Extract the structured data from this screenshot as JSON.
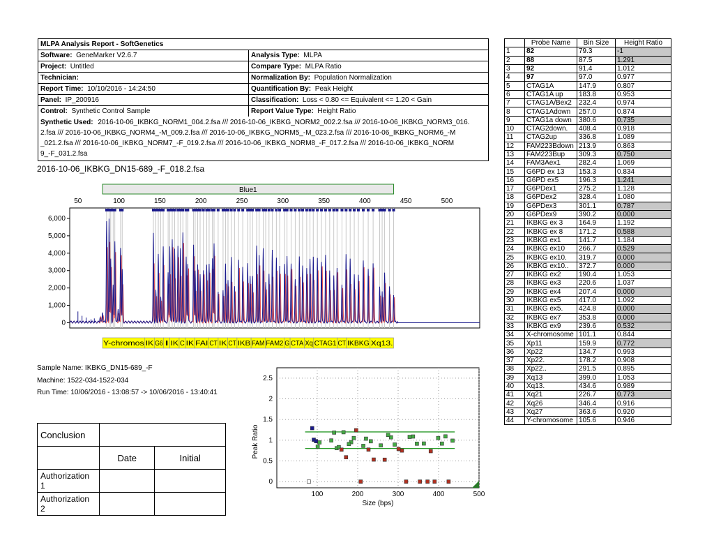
{
  "report": {
    "title": "MLPA Analysis Report  - SoftGenetics",
    "rows": [
      {
        "l_label": "Software:",
        "l_value": "GeneMarker V2.6.7",
        "r_label": "Analysis Type:",
        "r_value": "MLPA"
      },
      {
        "l_label": "Project:",
        "l_value": "Untitled",
        "r_label": "Compare Type:",
        "r_value": "MLPA Ratio"
      },
      {
        "l_label": "Technician:",
        "l_value": "",
        "r_label": "Normalization By:",
        "r_value": "Population Normalization"
      },
      {
        "l_label": "Report Time:",
        "l_value": "10/10/2016 - 14:24:50",
        "r_label": "Quantification By:",
        "r_value": "Peak Height"
      },
      {
        "l_label": "Panel:",
        "l_value": "IP_200916",
        "r_label": "Classification:",
        "r_value": "Loss < 0.80 <= Equivalent <= 1.20 < Gain"
      },
      {
        "l_label": "Control:",
        "l_value": "Synthetic Control Sample",
        "r_label": "Report Value Type:",
        "r_value": "Height Ratio"
      }
    ],
    "synthetic_label": "Synthetic Used:",
    "synthetic_lines": [
      "2016-10-06_IKBKG_NORM1_004.2.fsa /// 2016-10-06_IKBKG_NORM2_002.2.fsa /// 2016-10-06_IKBKG_NORM3_016.",
      "2.fsa /// 2016-10-06_IKBKG_NORM4_-M_009.2.fsa /// 2016-10-06_IKBKG_NORM5_-M_023.2.fsa /// 2016-10-06_IKBKG_NORM6_-M",
      "_021.2.fsa /// 2016-10-06_IKBKG_NORM7_-F_019.2.fsa /// 2016-10-06_IKBKG_NORM8_-F_017.2.fsa /// 2016-10-06_IKBKG_NORM",
      "9_-F_031.2.fsa"
    ]
  },
  "file_name": "2016-10-06_IKBKG_DN15-689_-F_018.2.fsa",
  "sample": {
    "name": "Sample Name: IKBKG_DN15-689_-F",
    "machine": "Machine: 1522-034-1522-034",
    "run_time": "Run Time: 10/06/2016 - 13:08:57 -> 10/06/2016 - 13:40:41"
  },
  "probe_table": {
    "headers": [
      "",
      "Probe Name",
      "Bin Size",
      "Height Ratio"
    ],
    "rows": [
      {
        "n": "1",
        "probe": "82",
        "bin": "79.3",
        "ratio": "-1",
        "hl": true,
        "bold": true
      },
      {
        "n": "2",
        "probe": "88",
        "bin": "87.5",
        "ratio": "1.291",
        "hl": true,
        "bold": true
      },
      {
        "n": "3",
        "probe": "92",
        "bin": "91.4",
        "ratio": "1.012",
        "hl": false,
        "bold": true
      },
      {
        "n": "4",
        "probe": "97",
        "bin": "97.0",
        "ratio": "0.977",
        "hl": false,
        "bold": true
      },
      {
        "n": "5",
        "probe": "CTAG1A",
        "bin": "147.9",
        "ratio": "0.807",
        "hl": false
      },
      {
        "n": "6",
        "probe": "CTAG1A up",
        "bin": "183.8",
        "ratio": "0.953",
        "hl": false
      },
      {
        "n": "7",
        "probe": "CTAG1A/Bex2",
        "bin": "232.4",
        "ratio": "0.974",
        "hl": false
      },
      {
        "n": "8",
        "probe": "CTAG1Adown",
        "bin": "257.0",
        "ratio": "0.874",
        "hl": false
      },
      {
        "n": "9",
        "probe": "CTAG1a down",
        "bin": "380.6",
        "ratio": "0.735",
        "hl": true
      },
      {
        "n": "10",
        "probe": "CTAG2down.",
        "bin": "408.4",
        "ratio": "0.918",
        "hl": false
      },
      {
        "n": "11",
        "probe": "CTAG2up",
        "bin": "336.8",
        "ratio": "1.089",
        "hl": false
      },
      {
        "n": "12",
        "probe": "FAM223Bdown",
        "bin": "213.9",
        "ratio": "0.863",
        "hl": false
      },
      {
        "n": "13",
        "probe": "FAM223Bup",
        "bin": "309.3",
        "ratio": "0.750",
        "hl": true
      },
      {
        "n": "14",
        "probe": "FAM3Aex1",
        "bin": "282.4",
        "ratio": "1.069",
        "hl": false
      },
      {
        "n": "15",
        "probe": "G6PD ex 13",
        "bin": "153.3",
        "ratio": "0.834",
        "hl": false
      },
      {
        "n": "16",
        "probe": "G6PD ex5",
        "bin": "196.3",
        "ratio": "1.241",
        "hl": true
      },
      {
        "n": "17",
        "probe": "G6PDex1",
        "bin": "275.2",
        "ratio": "1.128",
        "hl": false
      },
      {
        "n": "18",
        "probe": "G6PDex2",
        "bin": "328.4",
        "ratio": "1.080",
        "hl": false
      },
      {
        "n": "19",
        "probe": "G6PDex3",
        "bin": "301.1",
        "ratio": "0.787",
        "hl": true
      },
      {
        "n": "20",
        "probe": "G6PDex9",
        "bin": "390.2",
        "ratio": "0.000",
        "hl": true
      },
      {
        "n": "21",
        "probe": "IKBKG ex 3",
        "bin": "164.9",
        "ratio": "1.192",
        "hl": false
      },
      {
        "n": "22",
        "probe": "IKBKG ex 8",
        "bin": "171.2",
        "ratio": "0.588",
        "hl": true
      },
      {
        "n": "23",
        "probe": "IKBKG ex1",
        "bin": "141.7",
        "ratio": "1.184",
        "hl": false
      },
      {
        "n": "24",
        "probe": "IKBKG ex10",
        "bin": "266.7",
        "ratio": "0.529",
        "hl": true
      },
      {
        "n": "25",
        "probe": "IKBKG ex10.",
        "bin": "319.7",
        "ratio": "0.000",
        "hl": true
      },
      {
        "n": "26",
        "probe": "IKBKG ex10..",
        "bin": "372.7",
        "ratio": "0.000",
        "hl": true
      },
      {
        "n": "27",
        "probe": "IKBKG ex2",
        "bin": "190.4",
        "ratio": "1.053",
        "hl": false
      },
      {
        "n": "28",
        "probe": "IKBKG ex3",
        "bin": "220.6",
        "ratio": "1.037",
        "hl": false
      },
      {
        "n": "29",
        "probe": "IKBKG ex4",
        "bin": "207.4",
        "ratio": "0.000",
        "hl": true
      },
      {
        "n": "30",
        "probe": "IKBKG ex5",
        "bin": "417.0",
        "ratio": "1.092",
        "hl": false
      },
      {
        "n": "31",
        "probe": "IKBKG ex5.",
        "bin": "424.8",
        "ratio": "0.000",
        "hl": true
      },
      {
        "n": "32",
        "probe": "IKBKG ex7",
        "bin": "353.8",
        "ratio": "0.000",
        "hl": true
      },
      {
        "n": "33",
        "probe": "IKBKG ex9",
        "bin": "239.6",
        "ratio": "0.532",
        "hl": true
      },
      {
        "n": "34",
        "probe": "X-chromosome",
        "bin": "101.1",
        "ratio": "0.844",
        "hl": false
      },
      {
        "n": "35",
        "probe": "Xp11",
        "bin": "159.9",
        "ratio": "0.772",
        "hl": true
      },
      {
        "n": "36",
        "probe": "Xp22",
        "bin": "134.7",
        "ratio": "0.993",
        "hl": false
      },
      {
        "n": "37",
        "probe": "Xp22.",
        "bin": "178.2",
        "ratio": "0.908",
        "hl": false
      },
      {
        "n": "38",
        "probe": "Xp22..",
        "bin": "291.5",
        "ratio": "0.895",
        "hl": false
      },
      {
        "n": "39",
        "probe": "Xq13",
        "bin": "399.0",
        "ratio": "1.053",
        "hl": false
      },
      {
        "n": "40",
        "probe": "Xq13.",
        "bin": "434.6",
        "ratio": "0.989",
        "hl": false
      },
      {
        "n": "41",
        "probe": "Xq21",
        "bin": "226.7",
        "ratio": "0.773",
        "hl": true
      },
      {
        "n": "42",
        "probe": "Xq26",
        "bin": "346.4",
        "ratio": "0.916",
        "hl": false
      },
      {
        "n": "43",
        "probe": "Xq27",
        "bin": "363.6",
        "ratio": "0.920",
        "hl": false
      },
      {
        "n": "44",
        "probe": "Y-chromosome",
        "bin": "105.6",
        "ratio": "0.946",
        "hl": false
      }
    ]
  },
  "conclusion": {
    "label": "Conclusion",
    "date": "Date",
    "initial": "Initial",
    "auth1": "Authorization 1",
    "auth2": "Authorization 2"
  },
  "colors": {
    "blue_trace": "#1a1a8c",
    "red_trace": "#e05050",
    "yellow_label": "#ffff00",
    "green_line": "#2a9a2a",
    "gain_green": "#44aa44",
    "loss_red": "#b03020",
    "grey_highlight": "#c8c8c8"
  },
  "chart_data": [
    {
      "type": "line",
      "title": "Blue1",
      "x_ticks": [
        "50",
        "100",
        "150",
        "200",
        "250",
        "300",
        "350",
        "400",
        "450",
        "500"
      ],
      "y_ticks": [
        "0",
        "1,000",
        "2,000",
        "3,000",
        "4,000",
        "5,000",
        "6,000"
      ],
      "xlim": [
        40,
        540
      ],
      "ylim": [
        -300,
        6600
      ],
      "series": [
        {
          "values_desc": "electropherogram",
          "peaks": [
            [
              77,
              300
            ],
            [
              80,
              600
            ],
            [
              85,
              5800
            ],
            [
              88,
              6000
            ],
            [
              90,
              3600
            ],
            [
              93,
              2100
            ],
            [
              95,
              4700
            ],
            [
              99,
              800
            ],
            [
              102,
              4300
            ],
            [
              104,
              3000
            ],
            [
              142,
              5100
            ],
            [
              145,
              1800
            ],
            [
              148,
              3900
            ],
            [
              151,
              1500
            ],
            [
              154,
              4400
            ],
            [
              160,
              2800
            ],
            [
              162,
              4400
            ],
            [
              165,
              4800
            ],
            [
              168,
              4200
            ],
            [
              172,
              4400
            ],
            [
              175,
              4200
            ],
            [
              178,
              5100
            ],
            [
              182,
              3700
            ],
            [
              184,
              3400
            ],
            [
              191,
              4500
            ],
            [
              193,
              2900
            ],
            [
              196,
              3300
            ],
            [
              199,
              2800
            ],
            [
              203,
              3000
            ],
            [
              207,
              3300
            ],
            [
              210,
              3400
            ],
            [
              214,
              3700
            ],
            [
              216,
              4500
            ],
            [
              221,
              1800
            ],
            [
              227,
              1800
            ],
            [
              230,
              3300
            ],
            [
              233,
              2400
            ],
            [
              237,
              3700
            ],
            [
              241,
              2000
            ],
            [
              246,
              3600
            ],
            [
              251,
              3200
            ],
            [
              257,
              3400
            ],
            [
              260,
              2600
            ],
            [
              263,
              2600
            ],
            [
              268,
              4400
            ],
            [
              271,
              3800
            ],
            [
              276,
              4300
            ],
            [
              279,
              2300
            ],
            [
              283,
              2800
            ],
            [
              287,
              4200
            ],
            [
              292,
              3700
            ],
            [
              296,
              3200
            ],
            [
              302,
              3400
            ],
            [
              305,
              3800
            ],
            [
              310,
              3400
            ],
            [
              315,
              2400
            ],
            [
              320,
              3800
            ],
            [
              324,
              3300
            ],
            [
              329,
              3100
            ],
            [
              333,
              3600
            ],
            [
              337,
              3700
            ],
            [
              342,
              3700
            ],
            [
              347,
              3500
            ],
            [
              352,
              3800
            ],
            [
              357,
              3000
            ],
            [
              362,
              2700
            ],
            [
              366,
              3100
            ],
            [
              372,
              2200
            ],
            [
              377,
              3900
            ],
            [
              382,
              3600
            ],
            [
              387,
              2800
            ],
            [
              392,
              2700
            ],
            [
              398,
              3600
            ],
            [
              404,
              3000
            ],
            [
              410,
              3400
            ],
            [
              418,
              2000
            ],
            [
              421,
              1800
            ],
            [
              424,
              2900
            ],
            [
              430,
              2000
            ],
            [
              435,
              1600
            ]
          ]
        }
      ],
      "yellow_labels": [
        "Y-chromos",
        "IK",
        "G6",
        "I",
        "IK",
        "C",
        "IK",
        "FAI",
        "CT",
        "IK",
        "CT",
        "IKB",
        "FAM",
        "FAM2",
        "G",
        "CTA",
        "Xq",
        "CTAG1",
        "CT",
        "IKBKG",
        "Xq13."
      ]
    },
    {
      "type": "scatter",
      "xlabel": "Size (bps)",
      "ylabel": "Peak Ratio",
      "x_ticks": [
        "100",
        "200",
        "300",
        "400",
        "500"
      ],
      "y_ticks": [
        "0",
        "0.5",
        "1",
        "1.5",
        "2",
        "2.5"
      ],
      "xlim": [
        0,
        500
      ],
      "ylim": [
        -0.15,
        2.75
      ],
      "threshold_lines": [
        0.8,
        1.2
      ],
      "points": [
        {
          "x": 79.3,
          "y": 0.0,
          "kind": "white"
        },
        {
          "x": 87.5,
          "y": 1.291,
          "kind": "blue"
        },
        {
          "x": 91.4,
          "y": 1.012,
          "kind": "blue"
        },
        {
          "x": 97.0,
          "y": 0.977,
          "kind": "blue"
        },
        {
          "x": 147.9,
          "y": 0.807,
          "kind": "green"
        },
        {
          "x": 183.8,
          "y": 0.953,
          "kind": "green"
        },
        {
          "x": 232.4,
          "y": 0.974,
          "kind": "green"
        },
        {
          "x": 257.0,
          "y": 0.874,
          "kind": "green"
        },
        {
          "x": 380.6,
          "y": 0.735,
          "kind": "red"
        },
        {
          "x": 408.4,
          "y": 0.918,
          "kind": "green"
        },
        {
          "x": 336.8,
          "y": 1.089,
          "kind": "green"
        },
        {
          "x": 213.9,
          "y": 0.863,
          "kind": "green"
        },
        {
          "x": 309.3,
          "y": 0.75,
          "kind": "red"
        },
        {
          "x": 282.4,
          "y": 1.069,
          "kind": "green"
        },
        {
          "x": 153.3,
          "y": 0.834,
          "kind": "green"
        },
        {
          "x": 196.3,
          "y": 1.241,
          "kind": "red"
        },
        {
          "x": 275.2,
          "y": 1.128,
          "kind": "green"
        },
        {
          "x": 328.4,
          "y": 1.08,
          "kind": "green"
        },
        {
          "x": 301.1,
          "y": 0.787,
          "kind": "red"
        },
        {
          "x": 390.2,
          "y": 0.0,
          "kind": "red"
        },
        {
          "x": 164.9,
          "y": 1.192,
          "kind": "green"
        },
        {
          "x": 171.2,
          "y": 0.588,
          "kind": "red"
        },
        {
          "x": 141.7,
          "y": 1.184,
          "kind": "green"
        },
        {
          "x": 266.7,
          "y": 0.529,
          "kind": "red"
        },
        {
          "x": 319.7,
          "y": 0.0,
          "kind": "red"
        },
        {
          "x": 372.7,
          "y": 0.0,
          "kind": "red"
        },
        {
          "x": 190.4,
          "y": 1.053,
          "kind": "green"
        },
        {
          "x": 220.6,
          "y": 1.037,
          "kind": "green"
        },
        {
          "x": 207.4,
          "y": 0.0,
          "kind": "red"
        },
        {
          "x": 417.0,
          "y": 1.092,
          "kind": "green"
        },
        {
          "x": 424.8,
          "y": 0.0,
          "kind": "red"
        },
        {
          "x": 353.8,
          "y": 0.0,
          "kind": "red"
        },
        {
          "x": 239.6,
          "y": 0.532,
          "kind": "red"
        },
        {
          "x": 101.1,
          "y": 0.844,
          "kind": "green"
        },
        {
          "x": 159.9,
          "y": 0.772,
          "kind": "red"
        },
        {
          "x": 134.7,
          "y": 0.993,
          "kind": "green"
        },
        {
          "x": 178.2,
          "y": 0.908,
          "kind": "green"
        },
        {
          "x": 291.5,
          "y": 0.895,
          "kind": "green"
        },
        {
          "x": 399.0,
          "y": 1.053,
          "kind": "green"
        },
        {
          "x": 434.6,
          "y": 0.989,
          "kind": "green"
        },
        {
          "x": 226.7,
          "y": 0.773,
          "kind": "red"
        },
        {
          "x": 346.4,
          "y": 0.916,
          "kind": "green"
        },
        {
          "x": 363.6,
          "y": 0.92,
          "kind": "green"
        },
        {
          "x": 105.6,
          "y": 0.946,
          "kind": "green"
        }
      ]
    }
  ]
}
